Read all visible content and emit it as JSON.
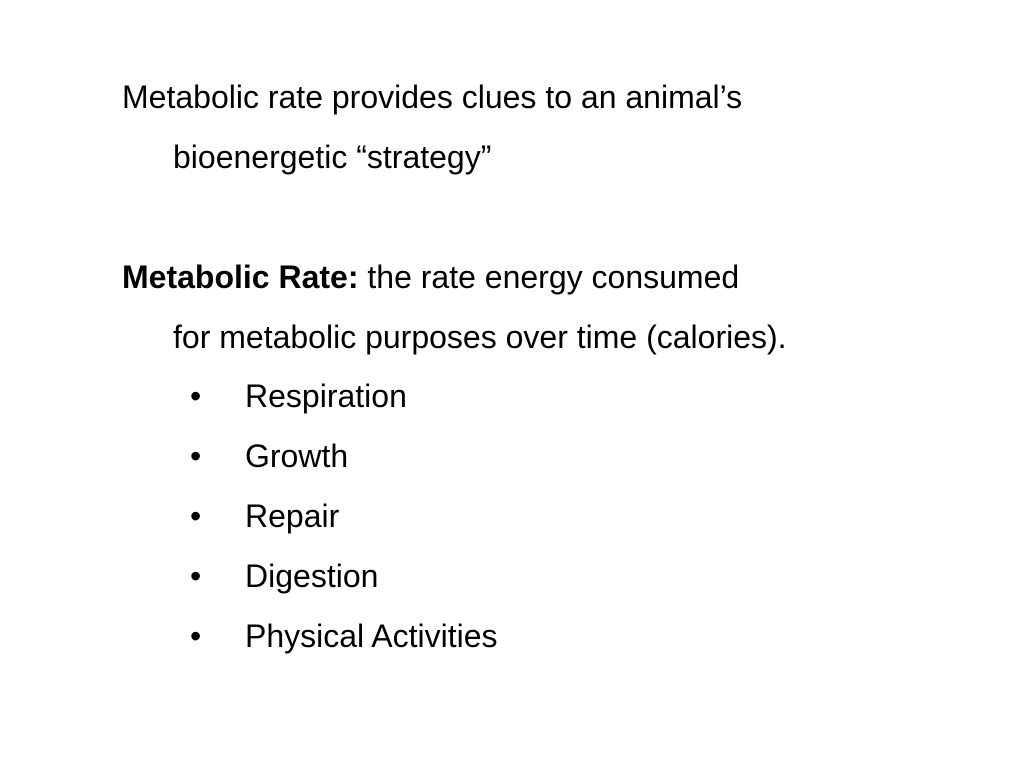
{
  "intro": {
    "line1": "Metabolic rate provides clues to an animal’s",
    "line2": "bioenergetic “strategy”"
  },
  "definition": {
    "term": "Metabolic Rate:",
    "text_line1": "the rate energy consumed",
    "text_line2": "for metabolic purposes over time (calories)."
  },
  "bullet_symbol": "•",
  "bullets": [
    "Respiration",
    "Growth",
    "Repair",
    "Digestion",
    "Physical Activities"
  ]
}
